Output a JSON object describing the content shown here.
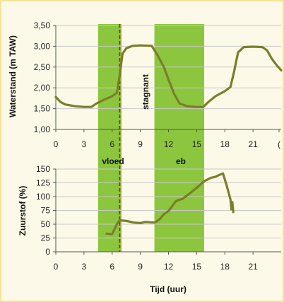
{
  "chart_data": [
    {
      "type": "line",
      "ylabel": "Waterstand (m TAW)",
      "xlim": [
        0,
        24
      ],
      "ylim": [
        1.0,
        3.5
      ],
      "x_ticks": [
        "0",
        "3",
        "6",
        "9",
        "12",
        "15",
        "18",
        "21",
        "("
      ],
      "y_ticks": [
        "1,00",
        "1,50",
        "2,00",
        "2,50",
        "3,00",
        "3,50"
      ],
      "grid": "horizontal",
      "annotations": [
        "stagnant"
      ],
      "series": [
        {
          "color": "#7a7e2a",
          "points": [
            [
              0,
              1.78
            ],
            [
              0.5,
              1.66
            ],
            [
              1,
              1.6
            ],
            [
              2,
              1.56
            ],
            [
              3,
              1.54
            ],
            [
              3.8,
              1.54
            ],
            [
              4.3,
              1.62
            ],
            [
              5,
              1.7
            ],
            [
              6,
              1.8
            ],
            [
              6.5,
              1.88
            ],
            [
              6.8,
              2.3
            ],
            [
              7.1,
              2.82
            ],
            [
              7.5,
              2.95
            ],
            [
              8.2,
              3.01
            ],
            [
              9,
              3.02
            ],
            [
              10.2,
              3.01
            ],
            [
              10.8,
              2.8
            ],
            [
              11.5,
              2.5
            ],
            [
              12,
              2.2
            ],
            [
              12.6,
              1.85
            ],
            [
              13.2,
              1.62
            ],
            [
              14,
              1.56
            ],
            [
              15,
              1.54
            ],
            [
              15.7,
              1.54
            ],
            [
              16.2,
              1.65
            ],
            [
              17,
              1.8
            ],
            [
              18,
              1.92
            ],
            [
              18.6,
              2.02
            ],
            [
              19,
              2.4
            ],
            [
              19.4,
              2.85
            ],
            [
              20,
              2.98
            ],
            [
              21,
              2.99
            ],
            [
              22,
              2.98
            ],
            [
              22.5,
              2.9
            ],
            [
              23,
              2.7
            ],
            [
              23.5,
              2.55
            ],
            [
              24,
              2.42
            ]
          ]
        }
      ]
    },
    {
      "type": "line",
      "ylabel": "Zuurstof (%)",
      "xlabel": "Tijd (uur)",
      "xlim": [
        0,
        24
      ],
      "ylim": [
        0,
        150
      ],
      "x_ticks": [
        "0",
        "3",
        "6",
        "9",
        "12",
        "15",
        "18",
        "21"
      ],
      "y_ticks": [
        "0",
        "25",
        "50",
        "75",
        "100",
        "125",
        "150"
      ],
      "grid": "horizontal",
      "series": [
        {
          "color": "#7a7e2a",
          "points": [
            [
              5.4,
              33
            ],
            [
              6.0,
              32
            ],
            [
              6.5,
              50
            ],
            [
              6.8,
              57
            ],
            [
              7.5,
              56
            ],
            [
              8.3,
              53
            ],
            [
              9.0,
              52
            ],
            [
              9.5,
              54
            ],
            [
              10.5,
              53
            ],
            [
              11.0,
              58
            ],
            [
              11.5,
              68
            ],
            [
              12.0,
              74
            ],
            [
              12.8,
              92
            ],
            [
              13.5,
              96
            ],
            [
              14.2,
              105
            ],
            [
              15.0,
              116
            ],
            [
              15.8,
              128
            ],
            [
              16.5,
              134
            ],
            [
              17.0,
              136
            ],
            [
              17.5,
              140
            ],
            [
              17.8,
              142
            ],
            [
              18.2,
              120
            ],
            [
              18.6,
              95
            ],
            [
              18.7,
              77
            ],
            [
              18.8,
              90
            ],
            [
              18.9,
              72
            ]
          ]
        }
      ]
    }
  ],
  "shared": {
    "bands": [
      {
        "label": "vloed",
        "x": [
          4.5,
          7.0
        ],
        "color": "#8cc63f"
      },
      {
        "label": "eb",
        "x": [
          10.5,
          15.8
        ],
        "color": "#8cc63f"
      }
    ],
    "marker_line": {
      "x": 6.8,
      "color": "#b22222"
    },
    "frame_color": "#f5e99a"
  }
}
